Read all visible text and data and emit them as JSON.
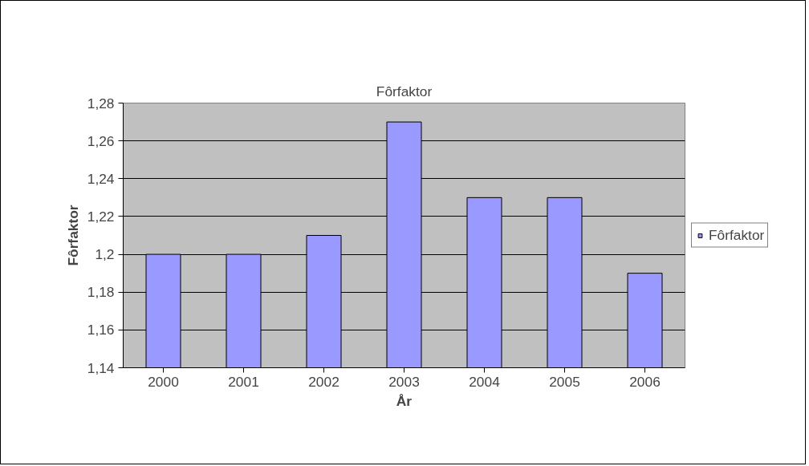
{
  "chart_data": {
    "type": "bar",
    "title": "Fôrfaktor",
    "xlabel": "År",
    "ylabel": "Fôrfaktor",
    "categories": [
      "2000",
      "2001",
      "2002",
      "2003",
      "2004",
      "2005",
      "2006"
    ],
    "series": [
      {
        "name": "Fôrfaktor",
        "color": "#9999ff",
        "values": [
          1.2,
          1.2,
          1.21,
          1.27,
          1.23,
          1.23,
          1.19
        ]
      }
    ],
    "ylim": [
      1.14,
      1.28
    ],
    "yticks": [
      {
        "value": 1.14,
        "label": "1,14"
      },
      {
        "value": 1.16,
        "label": "1,16"
      },
      {
        "value": 1.18,
        "label": "1,18"
      },
      {
        "value": 1.2,
        "label": "1,2"
      },
      {
        "value": 1.22,
        "label": "1,22"
      },
      {
        "value": 1.24,
        "label": "1,24"
      },
      {
        "value": 1.26,
        "label": "1,26"
      },
      {
        "value": 1.28,
        "label": "1,28"
      }
    ],
    "grid": "y",
    "legend": "right"
  }
}
